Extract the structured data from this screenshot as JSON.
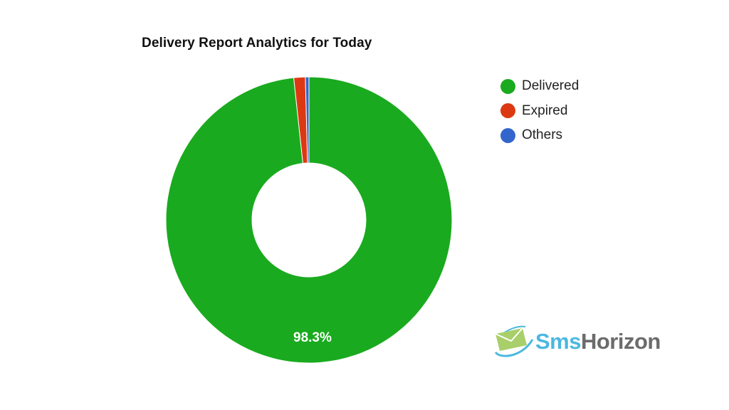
{
  "chart_data": {
    "type": "pie",
    "variant": "donut",
    "title": "Delivery Report Analytics for Today",
    "categories": [
      "Delivered",
      "Expired",
      "Others"
    ],
    "values": [
      98.3,
      1.3,
      0.4
    ],
    "colors": [
      "#1aaa1f",
      "#dc3912",
      "#3366cc"
    ],
    "data_labels": [
      "98.3%",
      "",
      ""
    ],
    "legend_position": "right"
  },
  "title": "Delivery Report Analytics for Today",
  "legend": [
    {
      "label": "Delivered",
      "color": "#1aaa1f"
    },
    {
      "label": "Expired",
      "color": "#dc3912"
    },
    {
      "label": "Others",
      "color": "#3366cc"
    }
  ],
  "slice_label": "98.3%",
  "logo": {
    "part1": "Sms",
    "part2": "Horizon"
  }
}
